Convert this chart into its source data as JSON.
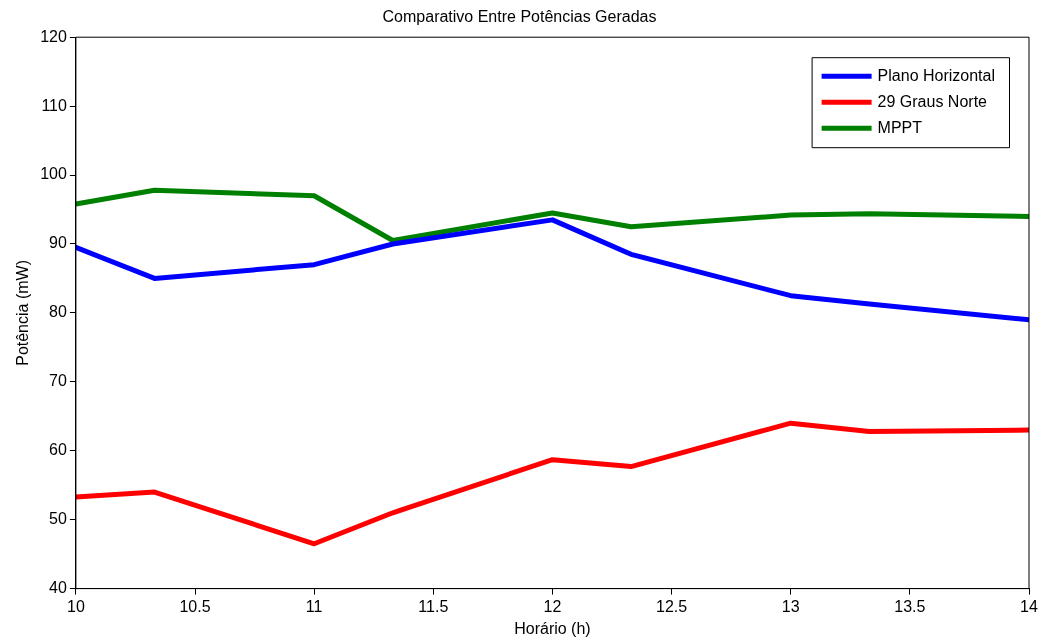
{
  "chart_data": {
    "type": "line",
    "title": "Comparativo Entre Potências Geradas",
    "xlabel": "Horário (h)",
    "ylabel": "Potência (mW)",
    "x": [
      10,
      10.33,
      11,
      11.33,
      12,
      12.33,
      13,
      13.33,
      14
    ],
    "series": [
      {
        "name": "Plano Horizontal",
        "color": "#0000ff",
        "values": [
          89.5,
          85,
          87,
          90,
          93.5,
          88.5,
          82.5,
          81.3,
          79
        ]
      },
      {
        "name": "29 Graus Norte",
        "color": "#ff0000",
        "values": [
          53.3,
          54,
          46.5,
          51,
          58.7,
          57.7,
          64,
          62.8,
          63
        ]
      },
      {
        "name": "MPPT",
        "color": "#008000",
        "values": [
          95.8,
          97.8,
          97,
          90.5,
          94.5,
          92.5,
          94.2,
          94.4,
          94
        ]
      }
    ],
    "xlim": [
      10,
      14
    ],
    "xticks": [
      10,
      10.5,
      11,
      11.5,
      12,
      12.5,
      13,
      13.5,
      14
    ],
    "ylim": [
      40,
      120
    ],
    "yticks": [
      40,
      50,
      60,
      70,
      80,
      90,
      100,
      110,
      120
    ],
    "grid": false,
    "legend": "top right",
    "marker": "none",
    "line_style": "solid"
  }
}
